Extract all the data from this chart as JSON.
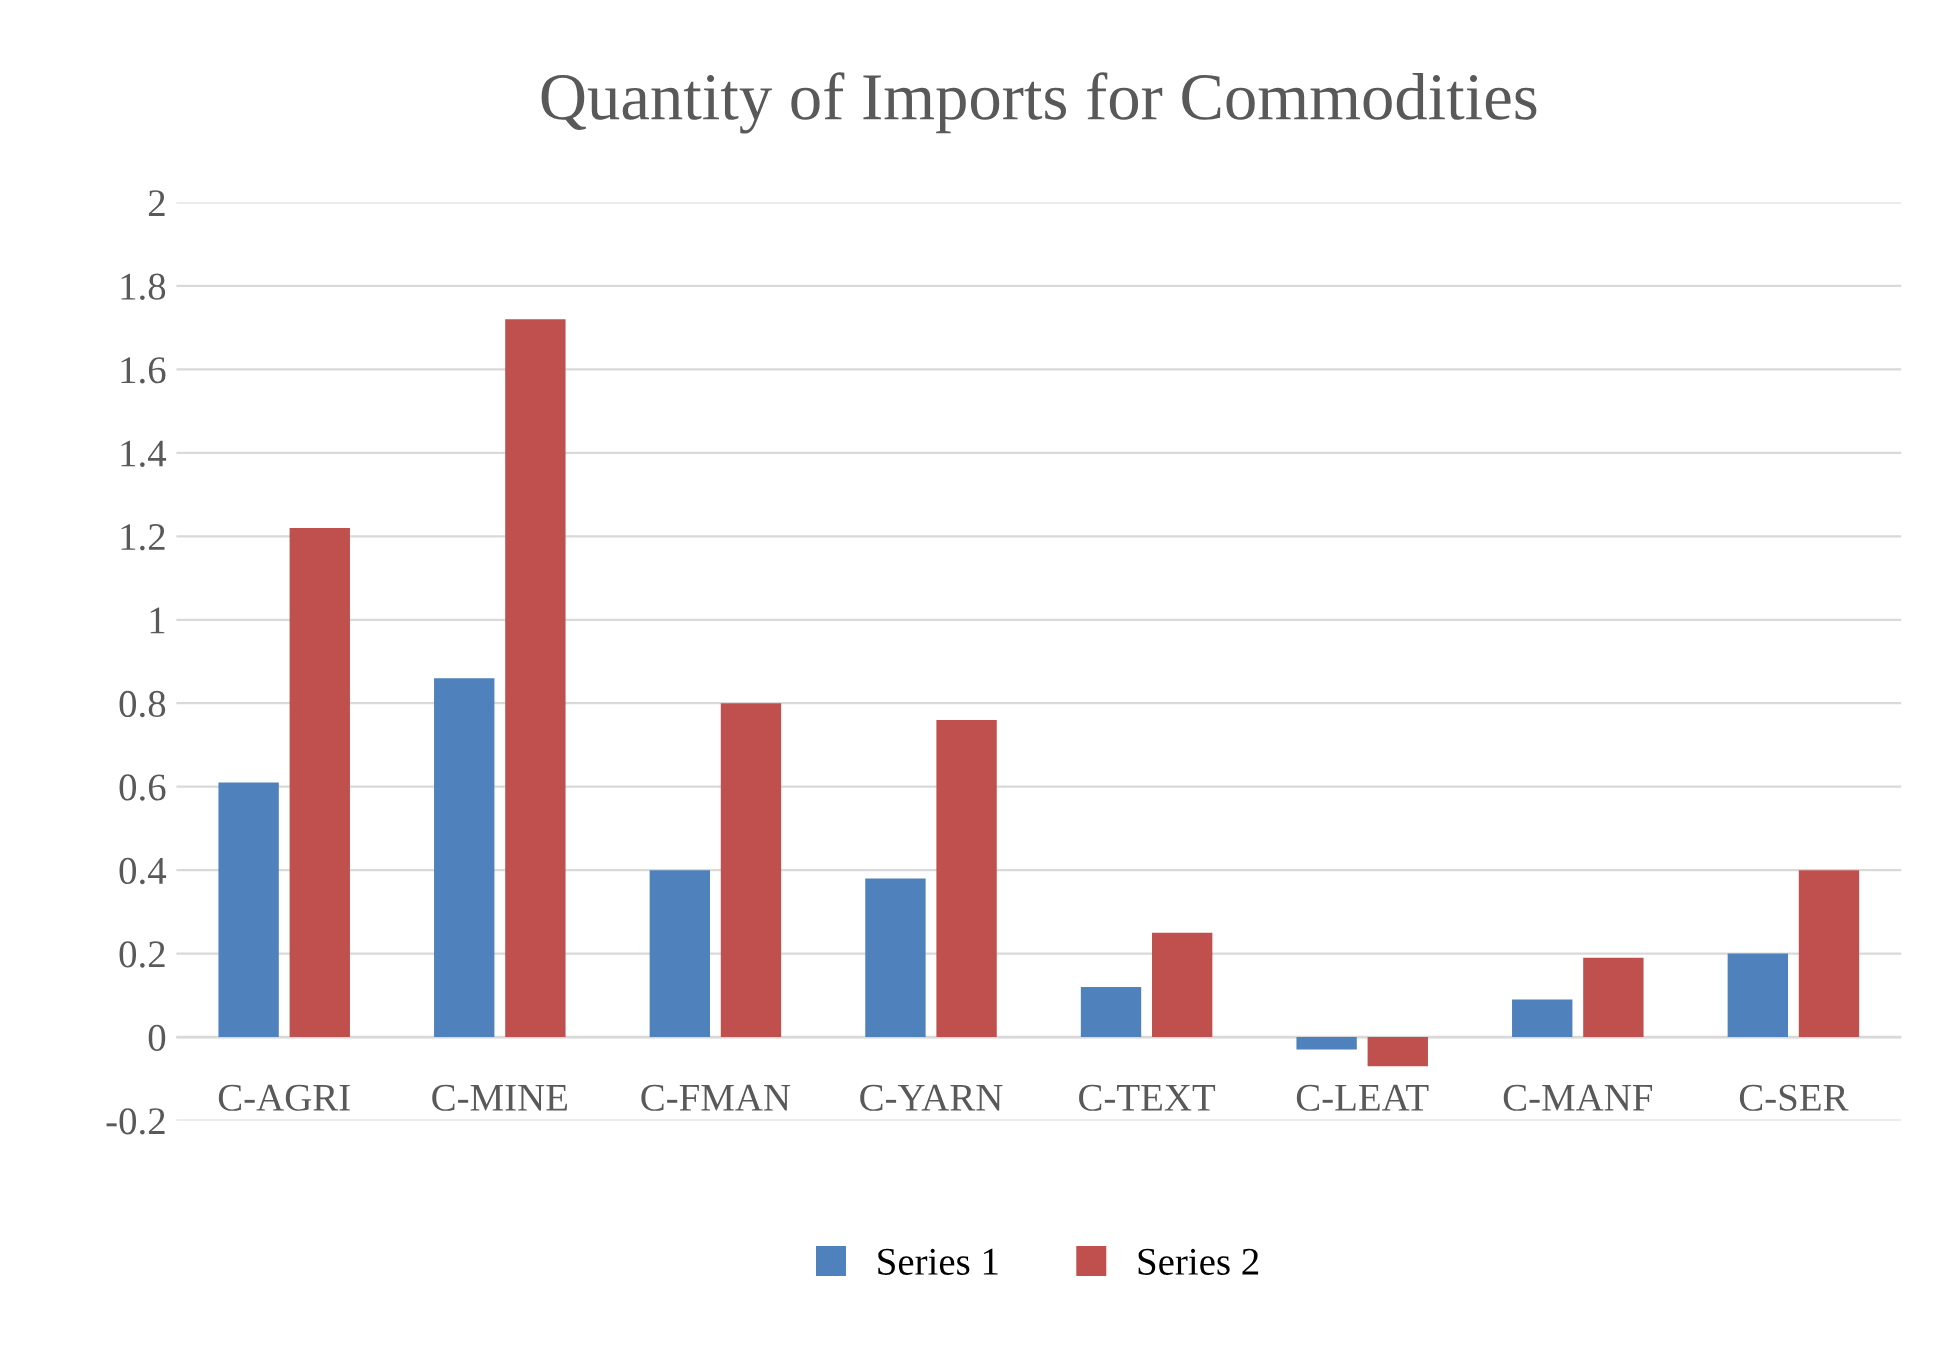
{
  "chart_data": {
    "type": "bar",
    "title": "Quantity of Imports for Commodities",
    "categories": [
      "C-AGRI",
      "C-MINE",
      "C-FMAN",
      "C-YARN",
      "C-TEXT",
      "C-LEAT",
      "C-MANF",
      "C-SER"
    ],
    "series": [
      {
        "name": "Series 1",
        "color": "#4f81bd",
        "values": [
          0.61,
          0.86,
          0.4,
          0.38,
          0.12,
          -0.03,
          0.09,
          0.2
        ]
      },
      {
        "name": "Series 2",
        "color": "#c0504d",
        "values": [
          1.22,
          1.72,
          0.8,
          0.76,
          0.25,
          -0.07,
          0.19,
          0.4
        ]
      }
    ],
    "ylim": [
      -0.2,
      2
    ],
    "yticks": [
      -0.2,
      0,
      0.2,
      0.4,
      0.6,
      0.8,
      1,
      1.2,
      1.4,
      1.6,
      1.8,
      2
    ],
    "grid": "y",
    "legend": "bottom"
  }
}
